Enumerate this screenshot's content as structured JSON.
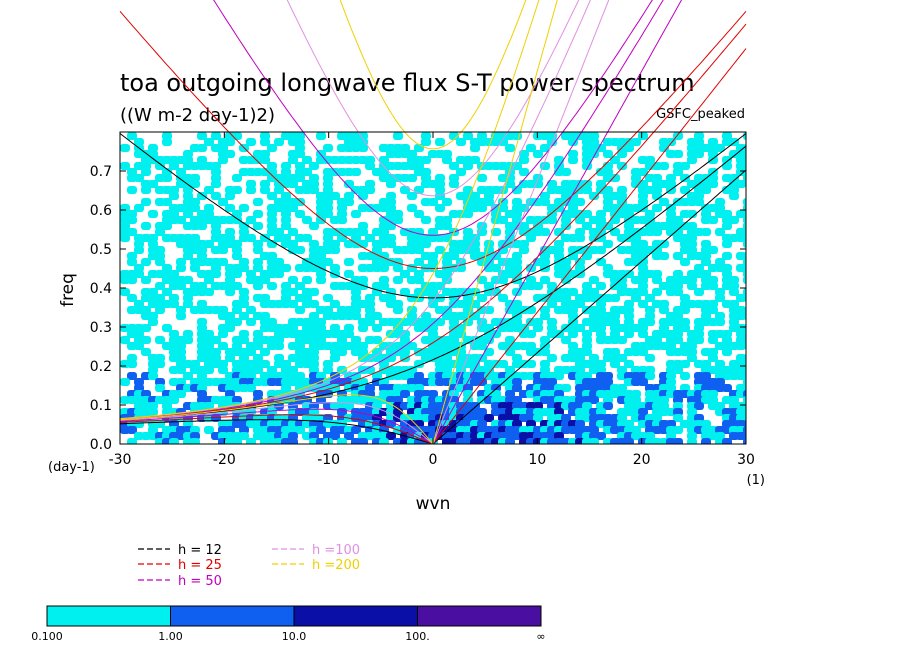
{
  "chart_data": {
    "type": "heatmap",
    "title": "toa outgoing longwave flux S-T power spectrum",
    "subtitle": "((W m-2 day-1)2)",
    "model_label": "GSFC_peaked",
    "xlabel": "wvn",
    "ylabel": "freq",
    "x_unit": "(1)",
    "y_unit": "(day-1)",
    "xlim": [
      -30,
      30
    ],
    "ylim": [
      0,
      0.8
    ],
    "xticks": [
      "-30",
      "-20",
      "-10",
      "0",
      "10",
      "20",
      "30"
    ],
    "yticks": [
      "0.0",
      "0.1",
      "0.2",
      "0.3",
      "0.4",
      "0.5",
      "0.6",
      "0.7"
    ],
    "colorbar": {
      "levels": [
        "0.100",
        "1.00",
        "10.0",
        "100.",
        "∞"
      ],
      "colors": [
        "#00f0f0",
        "#0f5ff0",
        "#0a0fa8",
        "#4a0fa0"
      ]
    },
    "dispersion_curves": [
      {
        "label": "h = 12",
        "equivalent_depth": 12,
        "color": "#000000"
      },
      {
        "label": "h = 25",
        "equivalent_depth": 25,
        "color": "#e00000"
      },
      {
        "label": "h = 50",
        "equivalent_depth": 50,
        "color": "#c000c0"
      },
      {
        "label": "h =100",
        "equivalent_depth": 100,
        "color": "#e090e0"
      },
      {
        "label": "h =200",
        "equivalent_depth": 200,
        "color": "#f0d000"
      }
    ],
    "field_description_levels": {
      "background": "<0.100",
      "dominant": "0.100-1.00",
      "patches_low_frequency": "1.00-10.0",
      "spots_near_origin": "10.0-100."
    }
  }
}
